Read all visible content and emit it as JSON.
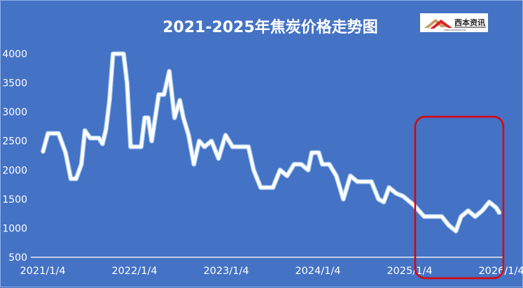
{
  "chart_data": {
    "type": "area",
    "title": "2021-2025年焦炭价格走势图",
    "xlabel": "",
    "ylabel": "",
    "ylim": [
      500,
      4000
    ],
    "yticks": [
      500,
      1000,
      1500,
      2000,
      2500,
      3000,
      3500,
      4000
    ],
    "xticks": [
      "2021/1/4",
      "2022/1/4",
      "2023/1/4",
      "2024/1/4",
      "2025/1/4",
      "2026/1/4"
    ],
    "grid": false,
    "legend": "none",
    "annotation": "red rounded rectangle highlighting 2025 to early 2026",
    "colors": {
      "background": "#4472c4",
      "line": "#ffffff",
      "highlight": "#e00000"
    },
    "x": [
      "2021-01-04",
      "2021-01-25",
      "2021-03-08",
      "2021-04-05",
      "2021-04-26",
      "2021-05-17",
      "2021-06-07",
      "2021-06-21",
      "2021-07-12",
      "2021-08-16",
      "2021-08-30",
      "2021-09-13",
      "2021-09-27",
      "2021-10-11",
      "2021-11-22",
      "2021-12-06",
      "2021-12-20",
      "2022-01-31",
      "2022-02-14",
      "2022-02-28",
      "2022-03-14",
      "2022-03-28",
      "2022-04-11",
      "2022-05-02",
      "2022-05-23",
      "2022-06-13",
      "2022-07-04",
      "2022-07-18",
      "2022-08-08",
      "2022-08-29",
      "2022-09-19",
      "2022-10-10",
      "2022-11-07",
      "2022-12-05",
      "2023-01-02",
      "2023-01-30",
      "2023-04-03",
      "2023-04-24",
      "2023-05-22",
      "2023-07-10",
      "2023-08-07",
      "2023-09-04",
      "2023-10-02",
      "2023-10-30",
      "2023-11-27",
      "2023-12-11",
      "2024-01-08",
      "2024-01-22",
      "2024-02-19",
      "2024-03-18",
      "2024-04-15",
      "2024-05-13",
      "2024-06-10",
      "2024-08-05",
      "2024-09-02",
      "2024-09-23",
      "2024-10-14",
      "2024-11-11",
      "2024-12-09",
      "2025-01-20",
      "2025-03-03",
      "2025-04-14",
      "2025-05-12",
      "2025-06-09",
      "2025-07-07",
      "2025-07-28",
      "2025-08-25",
      "2025-09-22",
      "2025-10-20",
      "2025-11-17",
      "2025-12-15",
      "2025-12-29"
    ],
    "values": [
      2300,
      2630,
      2630,
      2300,
      1850,
      1850,
      2100,
      2680,
      2550,
      2550,
      2450,
      2700,
      3200,
      4000,
      4000,
      3500,
      2400,
      2400,
      2900,
      2900,
      2500,
      2900,
      3300,
      3300,
      3700,
      2900,
      3200,
      2900,
      2600,
      2100,
      2500,
      2400,
      2500,
      2200,
      2600,
      2400,
      2400,
      2000,
      1700,
      1700,
      2000,
      1900,
      2100,
      2100,
      2000,
      2300,
      2300,
      2100,
      2100,
      1900,
      1500,
      1900,
      1800,
      1800,
      1500,
      1450,
      1700,
      1600,
      1550,
      1400,
      1200,
      1200,
      1200,
      1050,
      950,
      1200,
      1300,
      1200,
      1300,
      1450,
      1350,
      1250
    ]
  },
  "logo": {
    "text": "西本资讯",
    "subtext": "XIBEN INFORMATION"
  }
}
